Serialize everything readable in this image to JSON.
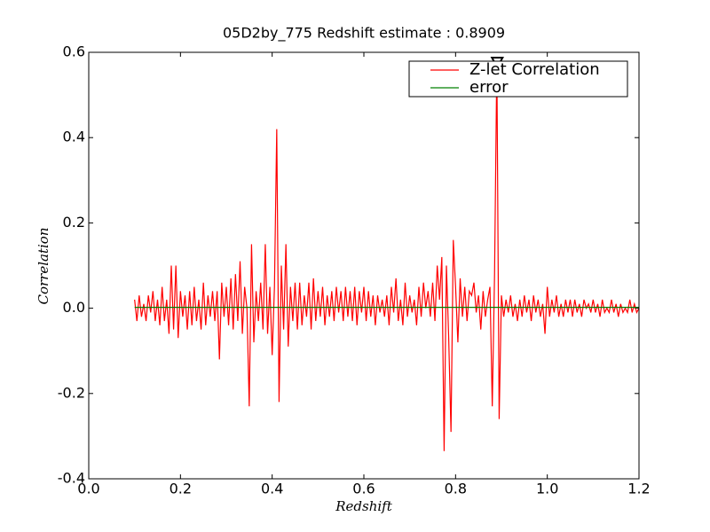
{
  "chart_data": {
    "type": "line",
    "title": "05D2by_775 Redshift estimate : 0.8909",
    "xlabel": "Redshift",
    "ylabel": "Correlation",
    "xlim": [
      0,
      1.2
    ],
    "ylim": [
      -0.4,
      0.6
    ],
    "xticks": [
      {
        "value": 0,
        "label": "0.0"
      },
      0.2,
      0.4,
      0.6,
      0.8,
      {
        "value": 1,
        "label": "1.0"
      },
      1.2
    ],
    "yticks": [
      -0.4,
      -0.2,
      {
        "value": 0,
        "label": "0.0"
      },
      0.2,
      0.4,
      0.6
    ],
    "grid": false,
    "legend": "upper right",
    "marker": {
      "x": 0.8909,
      "y": 0.575,
      "color": "#000000"
    },
    "series": [
      {
        "name": "Z-let Correlation",
        "color": "#ff0000",
        "x": [
          0.1,
          0.105,
          0.11,
          0.115,
          0.12,
          0.125,
          0.13,
          0.135,
          0.14,
          0.145,
          0.15,
          0.155,
          0.16,
          0.165,
          0.17,
          0.175,
          0.18,
          0.185,
          0.19,
          0.195,
          0.2,
          0.205,
          0.21,
          0.215,
          0.22,
          0.225,
          0.23,
          0.235,
          0.24,
          0.245,
          0.25,
          0.255,
          0.26,
          0.265,
          0.27,
          0.275,
          0.28,
          0.285,
          0.29,
          0.295,
          0.3,
          0.305,
          0.31,
          0.315,
          0.32,
          0.325,
          0.33,
          0.335,
          0.34,
          0.345,
          0.35,
          0.355,
          0.36,
          0.365,
          0.37,
          0.375,
          0.38,
          0.385,
          0.39,
          0.395,
          0.4,
          0.405,
          0.41,
          0.415,
          0.42,
          0.425,
          0.43,
          0.435,
          0.44,
          0.445,
          0.45,
          0.455,
          0.46,
          0.465,
          0.47,
          0.475,
          0.48,
          0.485,
          0.49,
          0.495,
          0.5,
          0.505,
          0.51,
          0.515,
          0.52,
          0.525,
          0.53,
          0.535,
          0.54,
          0.545,
          0.55,
          0.555,
          0.56,
          0.565,
          0.57,
          0.575,
          0.58,
          0.585,
          0.59,
          0.595,
          0.6,
          0.605,
          0.61,
          0.615,
          0.62,
          0.625,
          0.63,
          0.635,
          0.64,
          0.645,
          0.65,
          0.655,
          0.66,
          0.665,
          0.67,
          0.675,
          0.68,
          0.685,
          0.69,
          0.695,
          0.7,
          0.705,
          0.71,
          0.715,
          0.72,
          0.725,
          0.73,
          0.735,
          0.74,
          0.745,
          0.75,
          0.755,
          0.76,
          0.765,
          0.77,
          0.775,
          0.78,
          0.785,
          0.79,
          0.795,
          0.8,
          0.805,
          0.81,
          0.815,
          0.82,
          0.825,
          0.83,
          0.835,
          0.84,
          0.845,
          0.85,
          0.855,
          0.86,
          0.865,
          0.87,
          0.875,
          0.88,
          0.885,
          0.89,
          0.895,
          0.9,
          0.905,
          0.91,
          0.915,
          0.92,
          0.925,
          0.93,
          0.935,
          0.94,
          0.945,
          0.95,
          0.955,
          0.96,
          0.965,
          0.97,
          0.975,
          0.98,
          0.985,
          0.99,
          0.995,
          1.0,
          1.005,
          1.01,
          1.015,
          1.02,
          1.025,
          1.03,
          1.035,
          1.04,
          1.045,
          1.05,
          1.055,
          1.06,
          1.065,
          1.07,
          1.075,
          1.08,
          1.085,
          1.09,
          1.095,
          1.1,
          1.105,
          1.11,
          1.115,
          1.12,
          1.125,
          1.13,
          1.135,
          1.14,
          1.145,
          1.15,
          1.155,
          1.16,
          1.165,
          1.17,
          1.175,
          1.18,
          1.185,
          1.19,
          1.195,
          1.2
        ],
        "values": [
          0.02,
          -0.03,
          0.03,
          -0.02,
          0.01,
          -0.03,
          0.03,
          -0.01,
          0.04,
          -0.03,
          0.02,
          -0.04,
          0.05,
          -0.03,
          0.02,
          -0.06,
          0.1,
          -0.05,
          0.1,
          -0.07,
          0.04,
          -0.02,
          0.03,
          -0.05,
          0.04,
          -0.04,
          0.05,
          -0.03,
          0.02,
          -0.05,
          0.06,
          -0.04,
          0.03,
          -0.02,
          0.04,
          -0.03,
          0.04,
          -0.12,
          0.06,
          -0.02,
          0.05,
          -0.04,
          0.07,
          -0.05,
          0.08,
          -0.03,
          0.11,
          -0.06,
          0.05,
          0.0,
          -0.23,
          0.15,
          -0.08,
          0.04,
          -0.03,
          0.06,
          -0.05,
          0.15,
          -0.06,
          0.05,
          -0.11,
          0.05,
          0.42,
          -0.22,
          0.1,
          -0.05,
          0.15,
          -0.09,
          0.05,
          -0.03,
          0.06,
          -0.05,
          0.06,
          -0.04,
          0.03,
          -0.02,
          0.06,
          -0.05,
          0.07,
          -0.03,
          0.04,
          -0.02,
          0.05,
          -0.04,
          0.03,
          -0.02,
          0.04,
          -0.03,
          0.05,
          -0.01,
          0.04,
          -0.03,
          0.05,
          -0.02,
          0.04,
          -0.03,
          0.05,
          -0.04,
          0.04,
          -0.01,
          0.05,
          -0.03,
          0.04,
          -0.02,
          0.03,
          -0.04,
          0.03,
          -0.01,
          0.02,
          -0.02,
          0.03,
          -0.04,
          0.05,
          -0.01,
          0.07,
          -0.03,
          0.02,
          -0.04,
          0.06,
          -0.02,
          0.03,
          -0.01,
          0.02,
          -0.04,
          0.05,
          -0.02,
          0.06,
          0.0,
          0.04,
          -0.02,
          0.06,
          -0.03,
          0.1,
          0.02,
          0.12,
          -0.335,
          0.1,
          -0.07,
          -0.29,
          0.16,
          0.05,
          -0.08,
          0.07,
          -0.02,
          0.05,
          -0.03,
          0.04,
          0.03,
          0.06,
          -0.01,
          0.03,
          -0.05,
          0.04,
          -0.02,
          0.02,
          0.05,
          -0.23,
          0.08,
          0.58,
          -0.26,
          0.03,
          -0.02,
          0.02,
          -0.01,
          0.03,
          -0.02,
          0.01,
          -0.03,
          0.02,
          -0.02,
          0.03,
          -0.01,
          0.02,
          -0.03,
          0.03,
          -0.01,
          0.02,
          -0.02,
          0.01,
          -0.06,
          0.05,
          -0.02,
          0.02,
          -0.01,
          0.03,
          -0.02,
          0.01,
          -0.02,
          0.02,
          -0.01,
          0.02,
          -0.02,
          0.02,
          -0.01,
          0.01,
          -0.02,
          0.02,
          0.0,
          0.01,
          -0.01,
          0.02,
          -0.01,
          0.01,
          -0.02,
          0.02,
          -0.01,
          0.0,
          -0.01,
          0.02,
          -0.01,
          0.01,
          -0.02,
          0.01,
          -0.01,
          0.0,
          -0.01,
          0.02,
          -0.01,
          0.01,
          -0.01,
          0.0
        ]
      },
      {
        "name": "error",
        "color": "#008000",
        "x": [
          0.1,
          1.2
        ],
        "values": [
          0.002,
          0.002
        ]
      }
    ]
  }
}
